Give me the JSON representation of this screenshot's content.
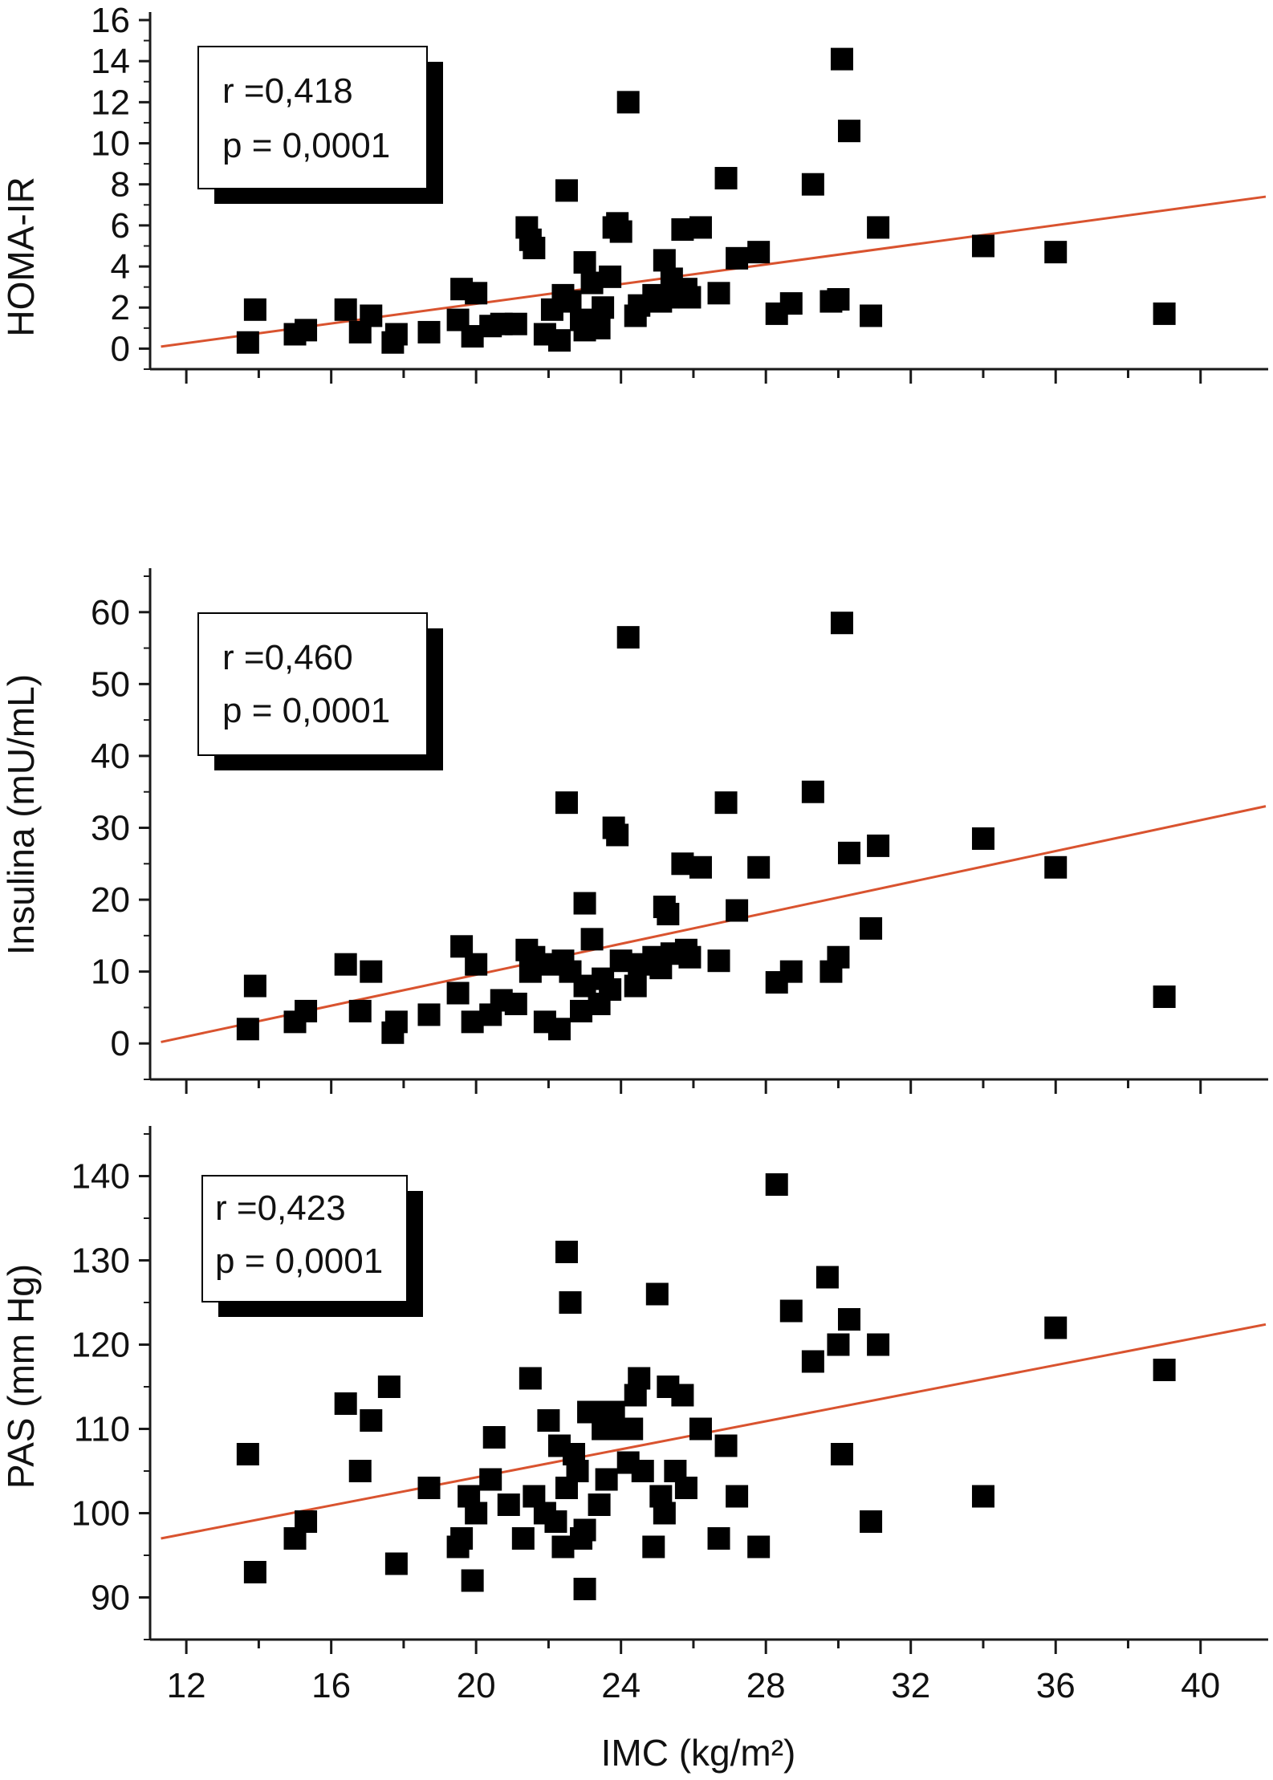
{
  "xlabel": "IMC (kg/m²)",
  "x_ticks": [
    12,
    16,
    20,
    24,
    28,
    32,
    36,
    40
  ],
  "colors": {
    "marker": "#000000",
    "trend": "#d9532f",
    "axis": "#1a1a1a"
  },
  "chart_data": [
    {
      "type": "scatter",
      "ylabel": "HOMA-IR",
      "xlim": [
        11,
        42
      ],
      "ylim": [
        -1,
        16
      ],
      "y_ticks": [
        0,
        2,
        4,
        6,
        8,
        10,
        12,
        14,
        16
      ],
      "grid": false,
      "stats": {
        "r": "r =0,418",
        "p": "p = 0,0001"
      },
      "trend": {
        "x": [
          11.3,
          41.8
        ],
        "y": [
          0.1,
          7.4
        ]
      },
      "points": [
        [
          13.7,
          0.3
        ],
        [
          13.9,
          1.9
        ],
        [
          15.0,
          0.7
        ],
        [
          15.3,
          0.9
        ],
        [
          16.4,
          1.9
        ],
        [
          16.8,
          0.8
        ],
        [
          17.1,
          1.6
        ],
        [
          17.7,
          0.3
        ],
        [
          17.8,
          0.7
        ],
        [
          18.7,
          0.8
        ],
        [
          19.5,
          1.4
        ],
        [
          19.6,
          2.9
        ],
        [
          19.9,
          0.6
        ],
        [
          20.0,
          2.7
        ],
        [
          20.4,
          1.1
        ],
        [
          20.7,
          1.2
        ],
        [
          21.1,
          1.2
        ],
        [
          21.4,
          5.9
        ],
        [
          21.5,
          5.3
        ],
        [
          21.6,
          4.9
        ],
        [
          21.9,
          0.7
        ],
        [
          22.1,
          1.9
        ],
        [
          22.3,
          0.4
        ],
        [
          22.4,
          2.6
        ],
        [
          22.5,
          7.7
        ],
        [
          22.6,
          2.3
        ],
        [
          22.9,
          1.4
        ],
        [
          23.0,
          0.9
        ],
        [
          23.0,
          4.2
        ],
        [
          23.2,
          3.2
        ],
        [
          23.4,
          1.0
        ],
        [
          23.5,
          2.0
        ],
        [
          23.7,
          3.5
        ],
        [
          23.8,
          5.9
        ],
        [
          23.9,
          6.1
        ],
        [
          24.0,
          5.7
        ],
        [
          24.2,
          12.0
        ],
        [
          24.4,
          1.6
        ],
        [
          24.5,
          2.1
        ],
        [
          24.9,
          2.6
        ],
        [
          25.1,
          2.3
        ],
        [
          25.2,
          4.3
        ],
        [
          25.3,
          2.5
        ],
        [
          25.4,
          3.4
        ],
        [
          25.7,
          5.8
        ],
        [
          25.8,
          2.9
        ],
        [
          25.9,
          2.5
        ],
        [
          26.2,
          5.9
        ],
        [
          26.7,
          2.7
        ],
        [
          26.9,
          8.3
        ],
        [
          27.2,
          4.4
        ],
        [
          27.8,
          4.7
        ],
        [
          28.3,
          1.7
        ],
        [
          28.7,
          2.2
        ],
        [
          29.3,
          8.0
        ],
        [
          29.8,
          2.3
        ],
        [
          30.0,
          2.4
        ],
        [
          30.1,
          14.1
        ],
        [
          30.3,
          10.6
        ],
        [
          30.9,
          1.6
        ],
        [
          31.1,
          5.9
        ],
        [
          34.0,
          5.0
        ],
        [
          36.0,
          4.7
        ],
        [
          39.0,
          1.7
        ]
      ]
    },
    {
      "type": "scatter",
      "ylabel": "Insulina (mU/mL)",
      "xlim": [
        11,
        42
      ],
      "ylim": [
        -5,
        65
      ],
      "y_ticks": [
        0,
        10,
        20,
        30,
        40,
        50,
        60
      ],
      "grid": false,
      "stats": {
        "r": "r =0,460",
        "p": "p = 0,0001"
      },
      "trend": {
        "x": [
          11.3,
          41.8
        ],
        "y": [
          0.2,
          33.0
        ]
      },
      "points": [
        [
          13.7,
          2.0
        ],
        [
          13.9,
          8.0
        ],
        [
          15.0,
          3.0
        ],
        [
          15.3,
          4.5
        ],
        [
          16.4,
          11.0
        ],
        [
          16.8,
          4.5
        ],
        [
          17.1,
          10.0
        ],
        [
          17.7,
          1.5
        ],
        [
          17.8,
          3.0
        ],
        [
          18.7,
          4.0
        ],
        [
          19.5,
          7.0
        ],
        [
          19.6,
          13.5
        ],
        [
          19.9,
          3.0
        ],
        [
          20.0,
          11.0
        ],
        [
          20.4,
          4.0
        ],
        [
          20.7,
          6.0
        ],
        [
          21.1,
          5.5
        ],
        [
          21.4,
          13.0
        ],
        [
          21.5,
          10.0
        ],
        [
          21.6,
          12.0
        ],
        [
          21.9,
          3.0
        ],
        [
          22.1,
          11.0
        ],
        [
          22.3,
          2.0
        ],
        [
          22.4,
          11.5
        ],
        [
          22.5,
          33.5
        ],
        [
          22.6,
          10.0
        ],
        [
          22.9,
          4.5
        ],
        [
          23.0,
          8.0
        ],
        [
          23.0,
          19.5
        ],
        [
          23.2,
          14.5
        ],
        [
          23.4,
          5.5
        ],
        [
          23.5,
          9.0
        ],
        [
          23.7,
          7.5
        ],
        [
          23.8,
          30.0
        ],
        [
          23.9,
          29.0
        ],
        [
          24.0,
          11.5
        ],
        [
          24.2,
          56.5
        ],
        [
          24.4,
          8.0
        ],
        [
          24.5,
          11.0
        ],
        [
          24.9,
          12.0
        ],
        [
          25.1,
          10.5
        ],
        [
          25.2,
          19.0
        ],
        [
          25.3,
          18.0
        ],
        [
          25.4,
          12.5
        ],
        [
          25.7,
          25.0
        ],
        [
          25.8,
          13.0
        ],
        [
          25.9,
          12.0
        ],
        [
          26.2,
          24.5
        ],
        [
          26.7,
          11.5
        ],
        [
          26.9,
          33.5
        ],
        [
          27.2,
          18.5
        ],
        [
          27.8,
          24.5
        ],
        [
          28.3,
          8.5
        ],
        [
          28.7,
          10.0
        ],
        [
          29.3,
          35.0
        ],
        [
          29.8,
          10.0
        ],
        [
          30.0,
          12.0
        ],
        [
          30.1,
          58.5
        ],
        [
          30.3,
          26.5
        ],
        [
          30.9,
          16.0
        ],
        [
          31.1,
          27.5
        ],
        [
          34.0,
          28.5
        ],
        [
          36.0,
          24.5
        ],
        [
          39.0,
          6.5
        ]
      ]
    },
    {
      "type": "scatter",
      "ylabel": "PAS (mm Hg)",
      "xlim": [
        11,
        42
      ],
      "ylim": [
        85,
        145
      ],
      "y_ticks": [
        90,
        100,
        110,
        120,
        130,
        140
      ],
      "grid": false,
      "stats": {
        "r": "r =0,423",
        "p": "p = 0,0001"
      },
      "trend": {
        "x": [
          11.3,
          41.8
        ],
        "y": [
          97.0,
          122.4
        ]
      },
      "points": [
        [
          13.7,
          107
        ],
        [
          13.9,
          93
        ],
        [
          15.0,
          97
        ],
        [
          15.3,
          99
        ],
        [
          16.4,
          113
        ],
        [
          16.8,
          105
        ],
        [
          17.1,
          111
        ],
        [
          17.6,
          115
        ],
        [
          17.8,
          94
        ],
        [
          18.7,
          103
        ],
        [
          19.5,
          96
        ],
        [
          19.6,
          97
        ],
        [
          19.8,
          102
        ],
        [
          19.9,
          92
        ],
        [
          20.0,
          100
        ],
        [
          20.4,
          104
        ],
        [
          20.5,
          109
        ],
        [
          20.9,
          101
        ],
        [
          21.3,
          97
        ],
        [
          21.5,
          116
        ],
        [
          21.6,
          102
        ],
        [
          21.9,
          100
        ],
        [
          22.0,
          111
        ],
        [
          22.2,
          99
        ],
        [
          22.3,
          108
        ],
        [
          22.4,
          96
        ],
        [
          22.5,
          103
        ],
        [
          22.5,
          131
        ],
        [
          22.6,
          125
        ],
        [
          22.7,
          107
        ],
        [
          22.8,
          105
        ],
        [
          22.9,
          97
        ],
        [
          23.0,
          91
        ],
        [
          23.0,
          98
        ],
        [
          23.1,
          112
        ],
        [
          23.2,
          112
        ],
        [
          23.4,
          101
        ],
        [
          23.5,
          110
        ],
        [
          23.6,
          104
        ],
        [
          23.8,
          112
        ],
        [
          24.0,
          110
        ],
        [
          24.2,
          106
        ],
        [
          24.3,
          110
        ],
        [
          24.4,
          114
        ],
        [
          24.5,
          116
        ],
        [
          24.6,
          105
        ],
        [
          24.9,
          96
        ],
        [
          25.0,
          126
        ],
        [
          25.1,
          102
        ],
        [
          25.2,
          100
        ],
        [
          25.3,
          115
        ],
        [
          25.5,
          105
        ],
        [
          25.7,
          114
        ],
        [
          25.8,
          103
        ],
        [
          26.2,
          110
        ],
        [
          26.7,
          97
        ],
        [
          26.9,
          108
        ],
        [
          27.2,
          102
        ],
        [
          27.8,
          96
        ],
        [
          28.3,
          139
        ],
        [
          28.7,
          124
        ],
        [
          29.3,
          118
        ],
        [
          29.7,
          128
        ],
        [
          30.0,
          120
        ],
        [
          30.1,
          107
        ],
        [
          30.3,
          123
        ],
        [
          30.9,
          99
        ],
        [
          31.1,
          120
        ],
        [
          34.0,
          102
        ],
        [
          36.0,
          122
        ],
        [
          39.0,
          117
        ]
      ]
    }
  ]
}
